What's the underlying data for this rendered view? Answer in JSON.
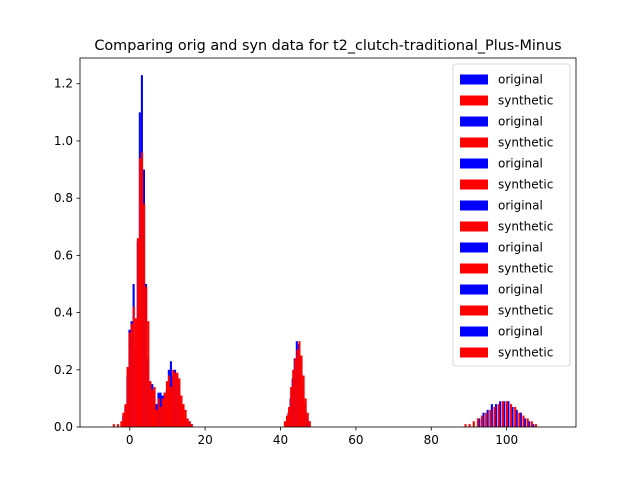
{
  "chart_data": {
    "type": "bar",
    "title": "Comparing orig and syn data for t2_clutch-traditional_Plus-Minus",
    "xlabel": "",
    "ylabel": "",
    "xlim": [
      -13.2,
      118.4
    ],
    "ylim": [
      0,
      1.29
    ],
    "xticks": [
      "0",
      "20",
      "40",
      "60",
      "80",
      "100"
    ],
    "yticks": [
      "0.0",
      "0.2",
      "0.4",
      "0.6",
      "0.8",
      "1.0",
      "1.2"
    ],
    "legend_position": "upper right",
    "colors": {
      "original": "#0000ff",
      "synthetic": "#ff0000"
    },
    "legend": [
      {
        "label": "original",
        "series": "original"
      },
      {
        "label": "synthetic",
        "series": "synthetic"
      },
      {
        "label": "original",
        "series": "original"
      },
      {
        "label": "synthetic",
        "series": "synthetic"
      },
      {
        "label": "original",
        "series": "original"
      },
      {
        "label": "synthetic",
        "series": "synthetic"
      },
      {
        "label": "original",
        "series": "original"
      },
      {
        "label": "synthetic",
        "series": "synthetic"
      },
      {
        "label": "original",
        "series": "original"
      },
      {
        "label": "synthetic",
        "series": "synthetic"
      },
      {
        "label": "original",
        "series": "original"
      },
      {
        "label": "synthetic",
        "series": "synthetic"
      },
      {
        "label": "original",
        "series": "original"
      },
      {
        "label": "synthetic",
        "series": "synthetic"
      }
    ],
    "series": [
      {
        "name": "original",
        "color": "#0000ff",
        "bin_width": 0.55,
        "bins": [
          [
            -2.0,
            0.04
          ],
          [
            -1.45,
            0.07
          ],
          [
            -0.9,
            0.18
          ],
          [
            -0.35,
            0.34
          ],
          [
            0.2,
            0.37
          ],
          [
            0.75,
            0.5
          ],
          [
            1.3,
            0.28
          ],
          [
            1.85,
            0.65
          ],
          [
            2.4,
            1.1
          ],
          [
            2.95,
            1.23
          ],
          [
            3.5,
            0.9
          ],
          [
            4.05,
            0.5
          ],
          [
            4.6,
            0.24
          ],
          [
            5.15,
            0.16
          ],
          [
            5.7,
            0.15
          ],
          [
            6.25,
            0.08
          ],
          [
            6.8,
            0.08
          ],
          [
            7.35,
            0.12
          ],
          [
            7.9,
            0.12
          ],
          [
            8.45,
            0.11
          ],
          [
            9.0,
            0.12
          ],
          [
            9.55,
            0.13
          ],
          [
            10.1,
            0.2
          ],
          [
            10.65,
            0.23
          ],
          [
            11.2,
            0.18
          ],
          [
            11.75,
            0.2
          ],
          [
            12.3,
            0.18
          ],
          [
            12.85,
            0.15
          ],
          [
            13.4,
            0.08
          ],
          [
            13.95,
            0.06
          ],
          [
            14.5,
            0.03
          ],
          [
            15.05,
            0.02
          ],
          [
            15.6,
            0.02
          ],
          [
            16.15,
            0.01
          ],
          [
            41.3,
            0.02
          ],
          [
            41.85,
            0.05
          ],
          [
            42.4,
            0.1
          ],
          [
            42.95,
            0.17
          ],
          [
            43.5,
            0.24
          ],
          [
            44.05,
            0.3
          ],
          [
            44.6,
            0.29
          ],
          [
            45.15,
            0.24
          ],
          [
            45.7,
            0.15
          ],
          [
            46.25,
            0.08
          ],
          [
            46.8,
            0.04
          ],
          [
            47.35,
            0.02
          ],
          [
            92.5,
            0.03
          ],
          [
            93.6,
            0.05
          ],
          [
            94.7,
            0.06
          ],
          [
            95.8,
            0.08
          ],
          [
            96.9,
            0.08
          ],
          [
            98.0,
            0.09
          ],
          [
            99.1,
            0.09
          ],
          [
            100.2,
            0.09
          ],
          [
            101.3,
            0.07
          ],
          [
            102.4,
            0.06
          ],
          [
            103.5,
            0.05
          ],
          [
            104.6,
            0.03
          ],
          [
            105.7,
            0.02
          ],
          [
            106.8,
            0.01
          ]
        ]
      },
      {
        "name": "synthetic",
        "color": "#ff0000",
        "bin_width": 0.55,
        "bins": [
          [
            -4.5,
            0.01
          ],
          [
            -3.4,
            0.01
          ],
          [
            -2.5,
            0.02
          ],
          [
            -1.95,
            0.05
          ],
          [
            -1.4,
            0.08
          ],
          [
            -0.85,
            0.21
          ],
          [
            -0.3,
            0.33
          ],
          [
            0.25,
            0.36
          ],
          [
            0.8,
            0.42
          ],
          [
            1.35,
            0.38
          ],
          [
            1.9,
            0.66
          ],
          [
            2.45,
            0.94
          ],
          [
            3.0,
            0.96
          ],
          [
            3.55,
            0.78
          ],
          [
            4.1,
            0.49
          ],
          [
            4.65,
            0.37
          ],
          [
            5.2,
            0.16
          ],
          [
            5.75,
            0.13
          ],
          [
            6.3,
            0.14
          ],
          [
            6.85,
            0.06
          ],
          [
            7.4,
            0.1
          ],
          [
            7.95,
            0.07
          ],
          [
            8.5,
            0.1
          ],
          [
            9.05,
            0.12
          ],
          [
            9.6,
            0.16
          ],
          [
            10.15,
            0.18
          ],
          [
            10.7,
            0.14
          ],
          [
            11.25,
            0.2
          ],
          [
            11.8,
            0.19
          ],
          [
            12.35,
            0.19
          ],
          [
            12.9,
            0.17
          ],
          [
            13.45,
            0.11
          ],
          [
            14.0,
            0.08
          ],
          [
            14.55,
            0.06
          ],
          [
            15.1,
            0.03
          ],
          [
            15.65,
            0.02
          ],
          [
            16.2,
            0.01
          ],
          [
            40.9,
            0.02
          ],
          [
            41.45,
            0.04
          ],
          [
            42.0,
            0.07
          ],
          [
            42.55,
            0.14
          ],
          [
            43.1,
            0.2
          ],
          [
            43.65,
            0.24
          ],
          [
            44.2,
            0.27
          ],
          [
            44.75,
            0.3
          ],
          [
            45.3,
            0.25
          ],
          [
            45.85,
            0.18
          ],
          [
            46.4,
            0.1
          ],
          [
            46.95,
            0.05
          ],
          [
            47.5,
            0.02
          ],
          [
            88.8,
            0.01
          ],
          [
            89.9,
            0.01
          ],
          [
            91.0,
            0.02
          ],
          [
            92.1,
            0.03
          ],
          [
            93.2,
            0.04
          ],
          [
            94.3,
            0.05
          ],
          [
            95.4,
            0.06
          ],
          [
            96.5,
            0.07
          ],
          [
            97.6,
            0.08
          ],
          [
            98.7,
            0.09
          ],
          [
            99.8,
            0.09
          ],
          [
            100.9,
            0.08
          ],
          [
            102.0,
            0.07
          ],
          [
            103.1,
            0.05
          ],
          [
            104.2,
            0.04
          ],
          [
            105.3,
            0.03
          ],
          [
            106.4,
            0.02
          ],
          [
            107.5,
            0.01
          ]
        ]
      }
    ]
  }
}
